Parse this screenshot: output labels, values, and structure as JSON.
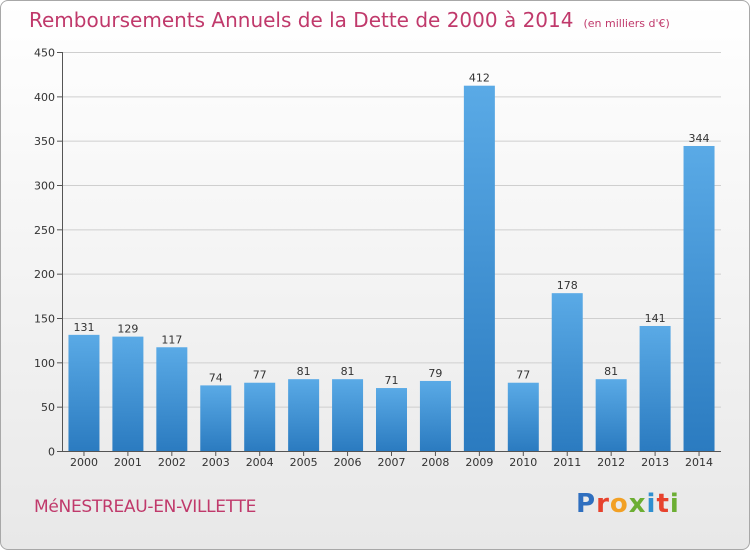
{
  "title": "Remboursements Annuels de la Dette de 2000 à 2014",
  "unit": "(en milliers d'€)",
  "commune": "MéNESTREAU-EN-VILLETTE",
  "logo": {
    "text": "Proxiti",
    "letters": [
      {
        "ch": "P",
        "color": "#2f6fbf"
      },
      {
        "ch": "r",
        "color": "#e7422d"
      },
      {
        "ch": "o",
        "color": "#f2a024"
      },
      {
        "ch": "x",
        "color": "#6cae33"
      },
      {
        "ch": "i",
        "color": "#2f8fd0"
      },
      {
        "ch": "t",
        "color": "#e7422d"
      },
      {
        "ch": "i",
        "color": "#6cae33"
      }
    ]
  },
  "colors": {
    "bar_top": "#5aaae6",
    "bar_bottom": "#2b7bc0",
    "title": "#c0396b",
    "grid": "#cfcfcf"
  },
  "chart_data": {
    "type": "bar",
    "categories": [
      "2000",
      "2001",
      "2002",
      "2003",
      "2004",
      "2005",
      "2006",
      "2007",
      "2008",
      "2009",
      "2010",
      "2011",
      "2012",
      "2013",
      "2014"
    ],
    "values": [
      131,
      129,
      117,
      74,
      77,
      81,
      81,
      71,
      79,
      412,
      77,
      178,
      81,
      141,
      344
    ],
    "data_labels": [
      "131",
      "129",
      "117",
      "74",
      "77",
      "81",
      "81",
      "71",
      "79",
      "412",
      "77",
      "178",
      "81",
      "141",
      "344"
    ],
    "yticks": [
      0,
      50,
      100,
      150,
      200,
      250,
      300,
      350,
      400,
      450
    ],
    "ylim": [
      0,
      450
    ],
    "grid": true,
    "legend": "none"
  }
}
